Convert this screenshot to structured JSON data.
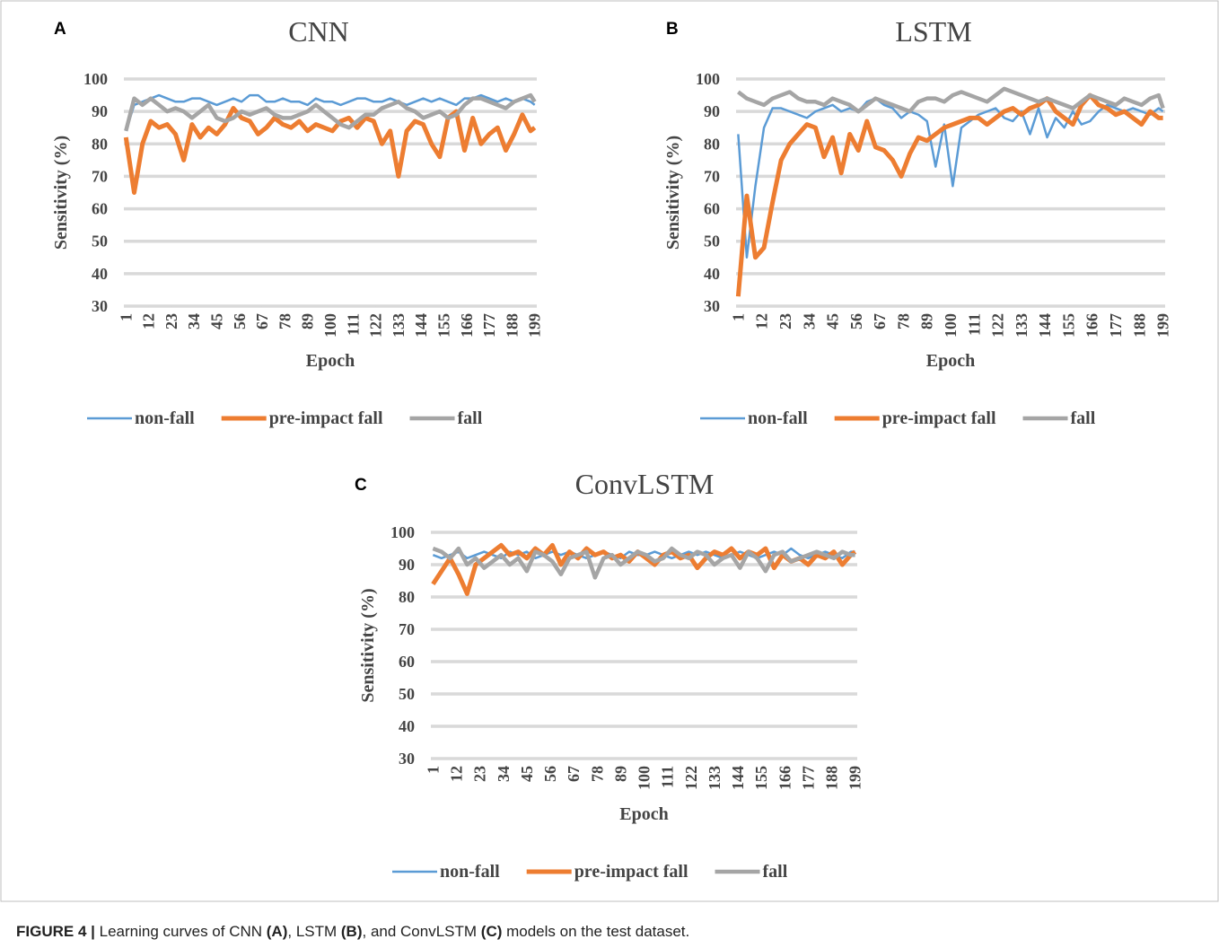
{
  "chart_data": [
    {
      "type": "line",
      "panel_label": "A",
      "title": "CNN",
      "y_label": "Sensitivity (%)",
      "x_label": "Epoch",
      "x": [
        1,
        5,
        9,
        13,
        17,
        21,
        25,
        29,
        33,
        37,
        41,
        45,
        49,
        53,
        57,
        61,
        65,
        69,
        73,
        77,
        81,
        85,
        89,
        93,
        97,
        101,
        105,
        109,
        113,
        117,
        121,
        125,
        129,
        133,
        137,
        141,
        145,
        149,
        153,
        157,
        161,
        165,
        169,
        173,
        177,
        181,
        185,
        189,
        193,
        197,
        199
      ],
      "xlim": [
        0,
        200
      ],
      "xticks": [
        1,
        12,
        23,
        34,
        45,
        56,
        67,
        78,
        89,
        100,
        111,
        122,
        133,
        144,
        155,
        166,
        177,
        188,
        199
      ],
      "ylim": [
        30,
        100
      ],
      "yticks": [
        30,
        40,
        50,
        60,
        70,
        80,
        90,
        100
      ],
      "grid": true,
      "legend": "bottom",
      "series": [
        {
          "name": "non-fall",
          "color": "#5b9bd5",
          "values": [
            84,
            92,
            93,
            94,
            95,
            94,
            93,
            93,
            94,
            94,
            93,
            92,
            93,
            94,
            93,
            95,
            95,
            93,
            93,
            94,
            93,
            93,
            92,
            94,
            93,
            93,
            92,
            93,
            94,
            94,
            93,
            93,
            94,
            93,
            92,
            93,
            94,
            93,
            94,
            93,
            92,
            94,
            94,
            95,
            94,
            93,
            94,
            93,
            94,
            93,
            92
          ]
        },
        {
          "name": "pre-impact fall",
          "color": "#ed7d31",
          "values": [
            82,
            65,
            80,
            87,
            85,
            86,
            83,
            75,
            86,
            82,
            85,
            83,
            86,
            91,
            88,
            87,
            83,
            85,
            88,
            86,
            85,
            87,
            84,
            86,
            85,
            84,
            87,
            88,
            85,
            88,
            87,
            80,
            84,
            70,
            84,
            87,
            86,
            80,
            76,
            88,
            90,
            78,
            88,
            80,
            83,
            85,
            78,
            83,
            89,
            84,
            85
          ]
        },
        {
          "name": "fall",
          "color": "#a5a5a5",
          "values": [
            84,
            94,
            92,
            94,
            92,
            90,
            91,
            90,
            88,
            90,
            92,
            88,
            87,
            88,
            90,
            89,
            90,
            91,
            89,
            88,
            88,
            89,
            90,
            92,
            90,
            88,
            86,
            85,
            87,
            89,
            89,
            91,
            92,
            93,
            91,
            90,
            88,
            89,
            90,
            88,
            89,
            92,
            94,
            94,
            93,
            92,
            91,
            93,
            94,
            95,
            93
          ]
        }
      ]
    },
    {
      "type": "line",
      "panel_label": "B",
      "title": "LSTM",
      "y_label": "Sensitivity (%)",
      "x_label": "Epoch",
      "x": [
        1,
        5,
        9,
        13,
        17,
        21,
        25,
        29,
        33,
        37,
        41,
        45,
        49,
        53,
        57,
        61,
        65,
        69,
        73,
        77,
        81,
        85,
        89,
        93,
        97,
        101,
        105,
        109,
        113,
        117,
        121,
        125,
        129,
        133,
        137,
        141,
        145,
        149,
        153,
        157,
        161,
        165,
        169,
        173,
        177,
        181,
        185,
        189,
        193,
        197,
        199
      ],
      "xlim": [
        0,
        200
      ],
      "xticks": [
        1,
        12,
        23,
        34,
        45,
        56,
        67,
        78,
        89,
        100,
        111,
        122,
        133,
        144,
        155,
        166,
        177,
        188,
        199
      ],
      "ylim": [
        30,
        100
      ],
      "yticks": [
        30,
        40,
        50,
        60,
        70,
        80,
        90,
        100
      ],
      "grid": true,
      "legend": "bottom",
      "series": [
        {
          "name": "non-fall",
          "color": "#5b9bd5",
          "values": [
            83,
            45,
            67,
            85,
            91,
            91,
            90,
            89,
            88,
            90,
            91,
            92,
            90,
            91,
            90,
            93,
            94,
            92,
            91,
            88,
            90,
            89,
            87,
            73,
            86,
            67,
            85,
            87,
            89,
            90,
            91,
            88,
            87,
            90,
            83,
            91,
            82,
            88,
            85,
            90,
            86,
            87,
            90,
            92,
            91,
            90,
            91,
            90,
            89,
            91,
            90
          ]
        },
        {
          "name": "pre-impact fall",
          "color": "#ed7d31",
          "values": [
            33,
            64,
            45,
            48,
            62,
            75,
            80,
            83,
            86,
            85,
            76,
            82,
            71,
            83,
            78,
            87,
            79,
            78,
            75,
            70,
            77,
            82,
            81,
            83,
            85,
            86,
            87,
            88,
            88,
            86,
            88,
            90,
            91,
            89,
            91,
            92,
            94,
            90,
            88,
            86,
            92,
            95,
            92,
            91,
            89,
            90,
            88,
            86,
            90,
            88,
            88
          ]
        },
        {
          "name": "fall",
          "color": "#a5a5a5",
          "values": [
            96,
            94,
            93,
            92,
            94,
            95,
            96,
            94,
            93,
            93,
            92,
            94,
            93,
            92,
            90,
            92,
            94,
            93,
            92,
            91,
            90,
            93,
            94,
            94,
            93,
            95,
            96,
            95,
            94,
            93,
            95,
            97,
            96,
            95,
            94,
            93,
            94,
            93,
            92,
            91,
            93,
            95,
            94,
            93,
            92,
            94,
            93,
            92,
            94,
            95,
            91
          ]
        }
      ]
    },
    {
      "type": "line",
      "panel_label": "C",
      "title": "ConvLSTM",
      "y_label": "Sensitivity (%)",
      "x_label": "Epoch",
      "x": [
        1,
        5,
        9,
        13,
        17,
        21,
        25,
        29,
        33,
        37,
        41,
        45,
        49,
        53,
        57,
        61,
        65,
        69,
        73,
        77,
        81,
        85,
        89,
        93,
        97,
        101,
        105,
        109,
        113,
        117,
        121,
        125,
        129,
        133,
        137,
        141,
        145,
        149,
        153,
        157,
        161,
        165,
        169,
        173,
        177,
        181,
        185,
        189,
        193,
        197,
        199
      ],
      "xlim": [
        0,
        200
      ],
      "xticks": [
        1,
        12,
        23,
        34,
        45,
        56,
        67,
        78,
        89,
        100,
        111,
        122,
        133,
        144,
        155,
        166,
        177,
        188,
        199
      ],
      "ylim": [
        30,
        100
      ],
      "yticks": [
        30,
        40,
        50,
        60,
        70,
        80,
        90,
        100
      ],
      "grid": true,
      "legend": "bottom",
      "series": [
        {
          "name": "non-fall",
          "color": "#5b9bd5",
          "values": [
            93,
            92,
            93,
            94,
            92,
            93,
            94,
            93,
            92,
            94,
            93,
            94,
            92,
            93,
            94,
            93,
            94,
            93,
            92,
            93,
            94,
            93,
            92,
            94,
            93,
            93,
            94,
            93,
            92,
            93,
            94,
            93,
            94,
            93,
            92,
            93,
            94,
            93,
            92,
            93,
            94,
            93,
            95,
            93,
            92,
            93,
            94,
            93,
            92,
            94,
            94
          ]
        },
        {
          "name": "pre-impact fall",
          "color": "#ed7d31",
          "values": [
            84,
            88,
            92,
            87,
            81,
            90,
            92,
            94,
            96,
            93,
            94,
            92,
            95,
            93,
            96,
            90,
            94,
            92,
            95,
            93,
            94,
            92,
            93,
            91,
            94,
            92,
            90,
            93,
            94,
            92,
            93,
            89,
            92,
            94,
            93,
            95,
            92,
            94,
            93,
            95,
            89,
            93,
            91,
            92,
            90,
            93,
            92,
            94,
            90,
            93,
            94
          ]
        },
        {
          "name": "fall",
          "color": "#a5a5a5",
          "values": [
            95,
            94,
            92,
            95,
            90,
            92,
            89,
            91,
            93,
            90,
            92,
            88,
            94,
            93,
            91,
            87,
            92,
            93,
            94,
            86,
            92,
            93,
            90,
            92,
            94,
            93,
            91,
            92,
            95,
            93,
            92,
            94,
            93,
            90,
            92,
            93,
            89,
            94,
            92,
            88,
            93,
            94,
            91,
            92,
            93,
            94,
            93,
            92,
            94,
            93,
            93
          ]
        }
      ]
    }
  ],
  "caption": [
    "FIGURE 4 |",
    " Learning curves of CNN ",
    "(A)",
    ", LSTM ",
    "(B)",
    ", and ConvLSTM ",
    "(C)",
    " models on the test dataset."
  ]
}
